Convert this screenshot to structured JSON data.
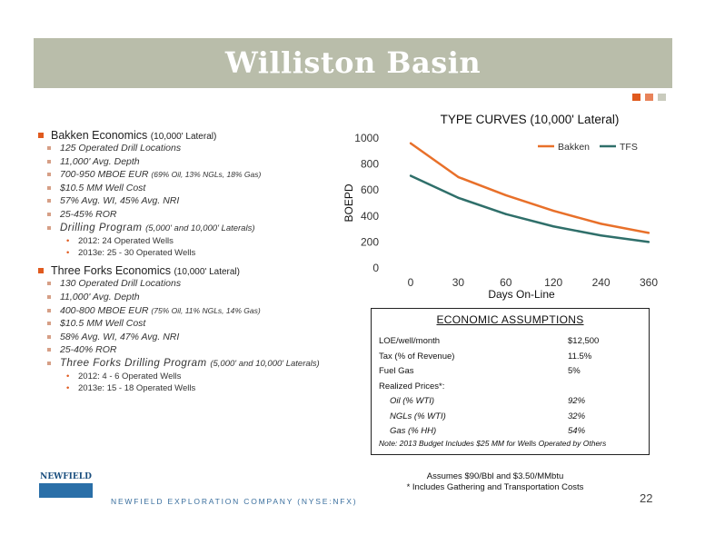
{
  "slide": {
    "title": "Williston Basin",
    "page_number": "22",
    "company_footer": "NEWFIELD EXPLORATION COMPANY (NYSE:NFX)",
    "logo_text": "NEWFIELD",
    "accent_colors": [
      "#e05a1e",
      "#e8835a",
      "#c9cbbd"
    ]
  },
  "bakken": {
    "heading": "Bakken Economics",
    "heading_note": "(10,000' Lateral)",
    "items": [
      "125 Operated Drill Locations",
      "11,000' Avg. Depth",
      "700-950 MBOE EUR",
      "$10.5 MM Well Cost",
      "57% Avg. WI, 45% Avg. NRI",
      "25-45% ROR"
    ],
    "eur_note": "(69% Oil, 13% NGLs, 18% Gas)",
    "program_label": "Drilling Program",
    "program_note": "(5,000' and 10,000' Laterals)",
    "program_items": [
      "2012: 24 Operated Wells",
      "2013e: 25 - 30 Operated Wells"
    ]
  },
  "three_forks": {
    "heading": "Three Forks Economics",
    "heading_note": "(10,000' Lateral)",
    "items": [
      "130 Operated Drill Locations",
      "11,000' Avg. Depth",
      "400-800 MBOE EUR",
      "$10.5 MM Well Cost",
      "58% Avg. WI, 47% Avg. NRI",
      "25-40% ROR"
    ],
    "eur_note": "(75% Oil, 11% NGLs, 14% Gas)",
    "program_label": "Three Forks Drilling Program",
    "program_note": "(5,000' and 10,000' Laterals)",
    "program_items": [
      "2012:   4 - 6 Operated Wells",
      "2013e: 15 - 18 Operated Wells"
    ]
  },
  "chart_data": {
    "type": "line",
    "title": "TYPE CURVES (10,000' Lateral)",
    "xlabel": "Days On-Line",
    "ylabel": "BOEPD",
    "categories": [
      "0",
      "30",
      "60",
      "120",
      "240",
      "360"
    ],
    "ylim": [
      0,
      1000
    ],
    "yticks": [
      "0",
      "200",
      "400",
      "600",
      "800",
      "1000"
    ],
    "legend_position": "top-right",
    "grid": false,
    "series": [
      {
        "name": "Bakken",
        "color": "#e8702a",
        "values": [
          960,
          700,
          560,
          440,
          340,
          270
        ]
      },
      {
        "name": "TFS",
        "color": "#2f6f6a",
        "values": [
          710,
          540,
          415,
          320,
          250,
          200
        ]
      }
    ]
  },
  "economics": {
    "title": "ECONOMIC ASSUMPTIONS",
    "rows": [
      {
        "label": "LOE/well/month",
        "value": "$12,500"
      },
      {
        "label": "Tax (% of Revenue)",
        "value": "11.5%"
      },
      {
        "label": "Fuel Gas",
        "value": "5%"
      },
      {
        "label": "Realized Prices*:",
        "value": ""
      },
      {
        "label": "Oil (% WTI)",
        "value": "92%"
      },
      {
        "label": "NGLs (% WTI)",
        "value": "32%"
      },
      {
        "label": "Gas (% HH)",
        "value": "54%"
      }
    ],
    "note": "Note: 2013 Budget Includes $25 MM for Wells Operated by Others"
  },
  "assumptions": {
    "line1": "Assumes $90/Bbl  and $3.50/MMbtu",
    "line2": "* Includes Gathering and Transportation Costs"
  }
}
